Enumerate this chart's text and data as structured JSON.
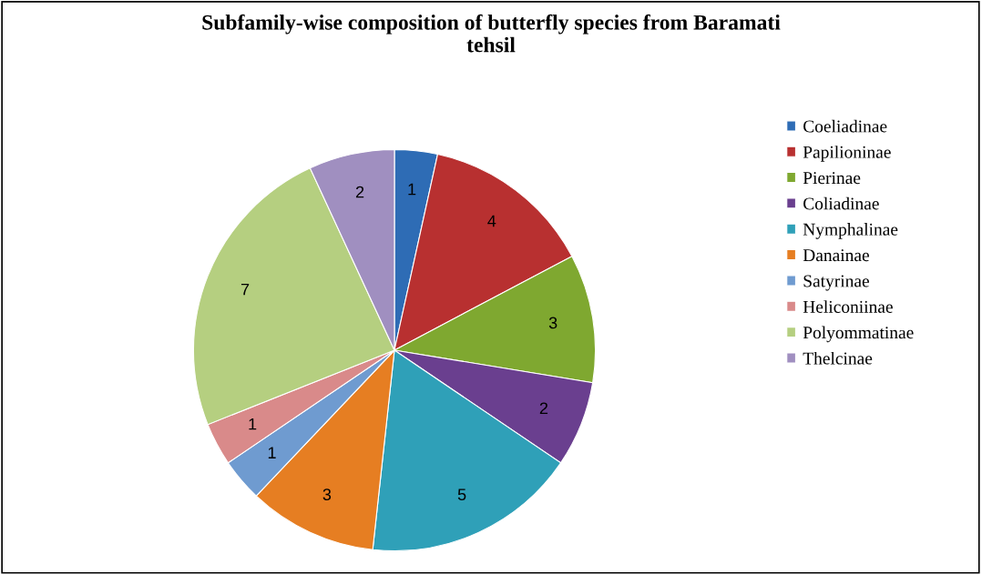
{
  "chart_data": {
    "type": "pie",
    "title": "Subfamily-wise composition of butterfly species from Baramati\ntehsil",
    "categories": [
      "Coeliadinae",
      "Papilioninae",
      "Pierinae",
      "Coliadinae",
      "Nymphalinae",
      "Danainae",
      "Satyrinae",
      "Heliconiinae",
      "Polyommatinae",
      "Thelcinae"
    ],
    "values": [
      1,
      4,
      3,
      2,
      5,
      3,
      1,
      1,
      7,
      2
    ],
    "colors": [
      "#2e6cb5",
      "#b83030",
      "#7fa830",
      "#6a3f8f",
      "#2fa0b8",
      "#e67e22",
      "#6f9bd0",
      "#d98a8a",
      "#b5cf80",
      "#a08fc0"
    ],
    "data_labels": true,
    "legend": "right"
  }
}
